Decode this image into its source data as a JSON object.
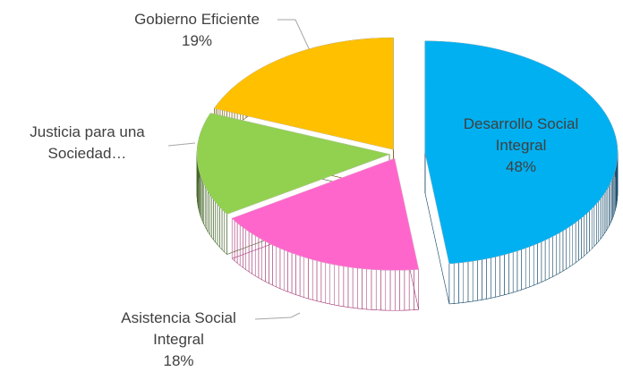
{
  "chart_data": {
    "type": "pie3d",
    "categories": [
      "Desarrollo Social Integral",
      "Asistencia Social Integral",
      "Justicia para una Sociedad…",
      "Gobierno Eficiente"
    ],
    "values": [
      48,
      18,
      15,
      19
    ],
    "value_labels": [
      "48%",
      "18%",
      null,
      "19%"
    ],
    "colors": [
      "#00b0f0",
      "#ff66cc",
      "#92d050",
      "#ffc000"
    ],
    "side_colors": [
      "#1d4f6e",
      "#a8427c",
      "#47662a",
      "#6e5200"
    ]
  }
}
